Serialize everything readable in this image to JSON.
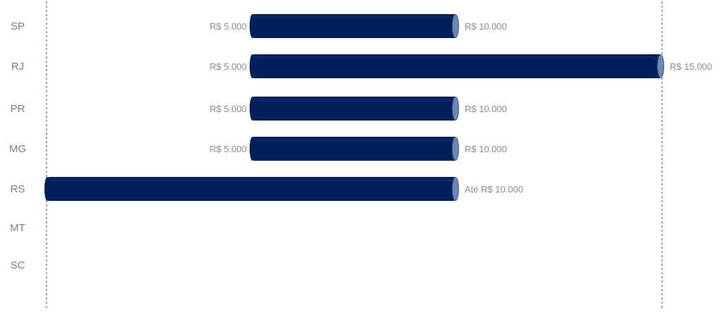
{
  "chart_data": {
    "type": "bar",
    "orientation": "horizontal",
    "style": "floating-range-cylinder",
    "categories": [
      "SP",
      "RJ",
      "PR",
      "MG",
      "RS",
      "MT",
      "SC"
    ],
    "ranges": [
      {
        "category": "SP",
        "start": 5000,
        "end": 10000,
        "start_label": "R$ 5.000",
        "end_label": "R$ 10.000"
      },
      {
        "category": "RJ",
        "start": 5000,
        "end": 15000,
        "start_label": "R$ 5.000",
        "end_label": "R$ 15.000"
      },
      {
        "category": "PR",
        "start": 5000,
        "end": 10000,
        "start_label": "R$ 5.000",
        "end_label": "R$ 10.000"
      },
      {
        "category": "MG",
        "start": 5000,
        "end": 10000,
        "start_label": "R$ 5.000",
        "end_label": "R$ 10.000"
      },
      {
        "category": "RS",
        "start": 0,
        "end": 10000,
        "start_label": "",
        "end_label": "Até R$ 10.000"
      },
      {
        "category": "MT",
        "start": null,
        "end": null,
        "start_label": "",
        "end_label": ""
      },
      {
        "category": "SC",
        "start": null,
        "end": null,
        "start_label": "",
        "end_label": ""
      }
    ],
    "xlim": [
      0,
      15000
    ],
    "reference_lines": [
      0,
      15000
    ],
    "grid": false,
    "legend": "none",
    "title": "",
    "xlabel": "",
    "ylabel": "",
    "colors": {
      "bar": "#00205b",
      "bar_highlight": "#0a2f7a",
      "bar_cap": "#6f86b3",
      "bar_cap_edge": "#3e5a94",
      "reference_line": "#2f4f8f",
      "category_text": "#7f7f7f",
      "value_text": "#8c8c8c"
    }
  }
}
